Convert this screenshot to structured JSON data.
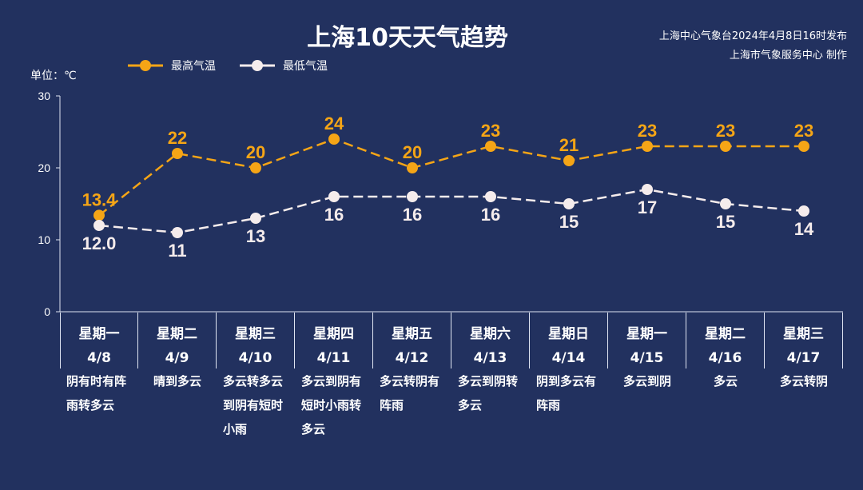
{
  "chart_data": {
    "type": "line",
    "title": "上海10天天气趋势",
    "publisher": [
      "上海中心气象台2024年4月8日16时发布",
      "上海市气象服务中心 制作"
    ],
    "ylabel": "单位：℃",
    "ylim": [
      0,
      30
    ],
    "yticks": [
      "0",
      "10",
      "20",
      "30"
    ],
    "yticks_values": [
      0,
      10,
      20,
      30
    ],
    "legend_position": "top-left",
    "colors": {
      "high": "#f5a516",
      "low": "#f5ecec",
      "bg": "#22315f"
    },
    "categories": [
      {
        "weekday": "星期一",
        "date": "4/8",
        "weather": "阴有时有阵雨转多云"
      },
      {
        "weekday": "星期二",
        "date": "4/9",
        "weather": "晴到多云"
      },
      {
        "weekday": "星期三",
        "date": "4/10",
        "weather": "多云转多云到阴有短时小雨"
      },
      {
        "weekday": "星期四",
        "date": "4/11",
        "weather": "多云到阴有短时小雨转多云"
      },
      {
        "weekday": "星期五",
        "date": "4/12",
        "weather": "多云转阴有阵雨"
      },
      {
        "weekday": "星期六",
        "date": "4/13",
        "weather": "多云到阴转多云"
      },
      {
        "weekday": "星期日",
        "date": "4/14",
        "weather": "阴到多云有阵雨"
      },
      {
        "weekday": "星期一",
        "date": "4/15",
        "weather": "多云到阴"
      },
      {
        "weekday": "星期二",
        "date": "4/16",
        "weather": "多云"
      },
      {
        "weekday": "星期三",
        "date": "4/17",
        "weather": "多云转阴"
      }
    ],
    "series": [
      {
        "name": "最高气温",
        "values": [
          13.4,
          22,
          20,
          24,
          20,
          23,
          21,
          23,
          23,
          23
        ],
        "labels": [
          "13.4",
          "22",
          "20",
          "24",
          "20",
          "23",
          "21",
          "23",
          "23",
          "23"
        ]
      },
      {
        "name": "最低气温",
        "values": [
          12.0,
          11,
          13,
          16,
          16,
          16,
          15,
          17,
          15,
          14
        ],
        "labels": [
          "12.0",
          "11",
          "13",
          "16",
          "16",
          "16",
          "15",
          "17",
          "15",
          "14"
        ]
      }
    ]
  }
}
